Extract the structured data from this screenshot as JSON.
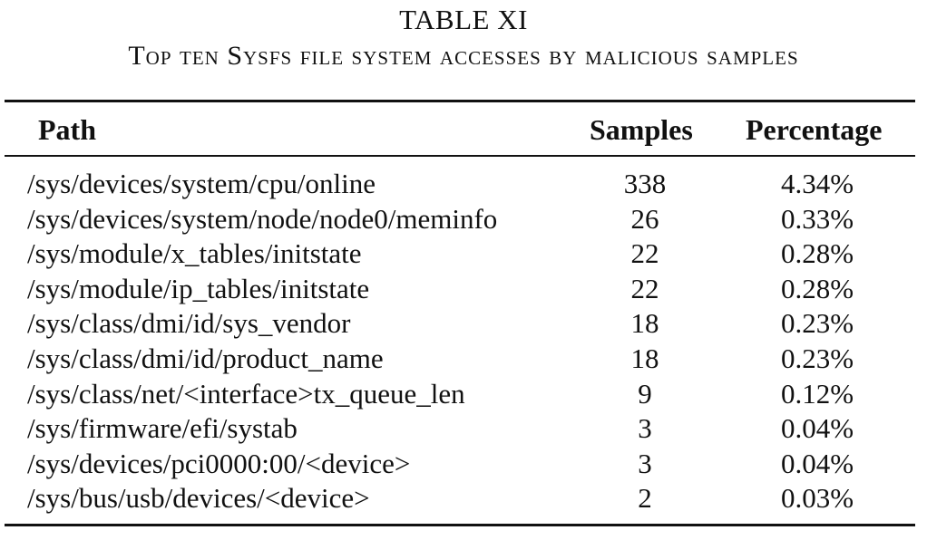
{
  "caption": {
    "number": "TABLE XI",
    "title": "Top ten Sysfs file system accesses by malicious samples"
  },
  "table": {
    "columns": [
      "Path",
      "Samples",
      "Percentage"
    ],
    "rows": [
      {
        "path": "/sys/devices/system/cpu/online",
        "samples": "338",
        "percentage": "4.34%"
      },
      {
        "path": "/sys/devices/system/node/node0/meminfo",
        "samples": "26",
        "percentage": "0.33%"
      },
      {
        "path": "/sys/module/x_tables/initstate",
        "samples": "22",
        "percentage": "0.28%"
      },
      {
        "path": "/sys/module/ip_tables/initstate",
        "samples": "22",
        "percentage": "0.28%"
      },
      {
        "path": "/sys/class/dmi/id/sys_vendor",
        "samples": "18",
        "percentage": "0.23%"
      },
      {
        "path": "/sys/class/dmi/id/product_name",
        "samples": "18",
        "percentage": "0.23%"
      },
      {
        "path": "/sys/class/net/<interface>tx_queue_len",
        "samples": "9",
        "percentage": "0.12%"
      },
      {
        "path": "/sys/firmware/efi/systab",
        "samples": "3",
        "percentage": "0.04%"
      },
      {
        "path": "/sys/devices/pci0000:00/<device>",
        "samples": "3",
        "percentage": "0.04%"
      },
      {
        "path": "/sys/bus/usb/devices/<device>",
        "samples": "2",
        "percentage": "0.03%"
      }
    ]
  }
}
